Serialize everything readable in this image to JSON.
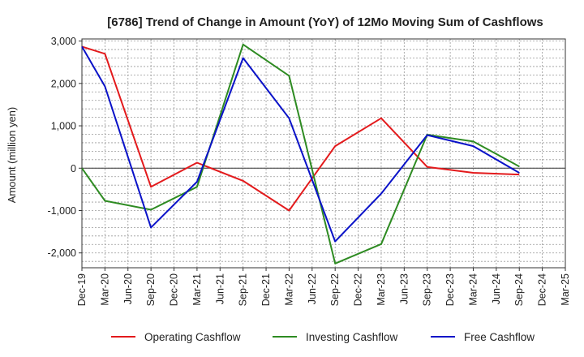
{
  "chart_data": {
    "type": "line",
    "title": "[6786]  Trend of Change in Amount (YoY) of 12Mo Moving Sum of Cashflows",
    "xlabel": "",
    "ylabel": "Amount (million yen)",
    "ylim": [
      -2350,
      3050
    ],
    "yticks": [
      3000,
      2000,
      1000,
      0,
      -1000,
      -2000
    ],
    "ytick_labels": [
      "3,000",
      "2,000",
      "1,000",
      "0",
      "-1,000",
      "-2,000"
    ],
    "categories": [
      "Dec-19",
      "Mar-20",
      "Jun-20",
      "Sep-20",
      "Dec-20",
      "Mar-21",
      "Jun-21",
      "Sep-21",
      "Dec-21",
      "Mar-22",
      "Jun-22",
      "Sep-22",
      "Dec-22",
      "Mar-23",
      "Jun-23",
      "Sep-23",
      "Dec-23",
      "Mar-24",
      "Jun-24",
      "Sep-24",
      "Dec-24",
      "Mar-25"
    ],
    "grid": true,
    "legend_position": "bottom",
    "series": [
      {
        "name": "Operating Cashflow",
        "color": "#e31a1c",
        "values": [
          2870,
          2700,
          null,
          -440,
          null,
          130,
          null,
          -300,
          null,
          -1000,
          null,
          520,
          null,
          1180,
          null,
          30,
          null,
          -110,
          null,
          -150,
          null,
          null
        ]
      },
      {
        "name": "Investing Cashflow",
        "color": "#2e8b22",
        "values": [
          0,
          -770,
          null,
          -980,
          null,
          -440,
          null,
          2920,
          null,
          2180,
          null,
          -2250,
          null,
          -1790,
          null,
          790,
          null,
          630,
          null,
          40,
          null,
          null
        ]
      },
      {
        "name": "Free Cashflow",
        "color": "#0a12c8",
        "values": [
          2870,
          1930,
          null,
          -1400,
          null,
          -320,
          null,
          2600,
          null,
          1180,
          null,
          -1730,
          null,
          -600,
          null,
          780,
          null,
          520,
          null,
          -110,
          null,
          null
        ]
      }
    ]
  }
}
